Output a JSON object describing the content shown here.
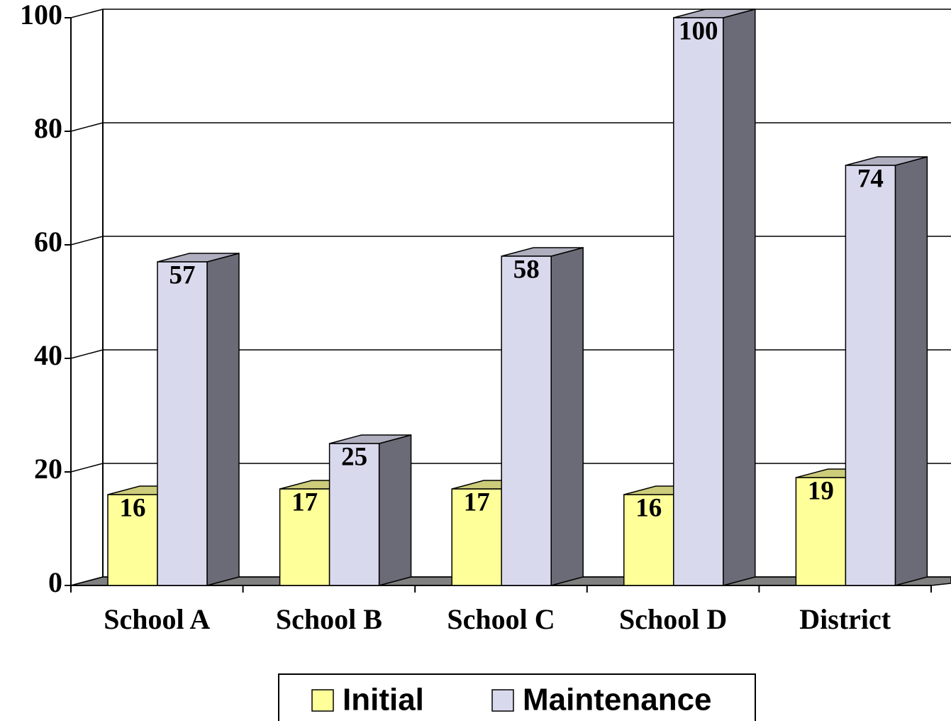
{
  "chart_data": {
    "type": "bar3d",
    "categories": [
      "School A",
      "School B",
      "School C",
      "School D",
      "District"
    ],
    "series": [
      {
        "name": "Initial",
        "color": "#ffff99",
        "values": [
          16,
          17,
          17,
          16,
          19
        ]
      },
      {
        "name": "Maintenance",
        "color": "#d9d9ee",
        "values": [
          57,
          25,
          58,
          100,
          74
        ]
      }
    ],
    "ylim": [
      0,
      100
    ],
    "yticks": [
      0,
      20,
      40,
      60,
      80,
      100
    ],
    "grid": true,
    "legend": "bottom"
  }
}
